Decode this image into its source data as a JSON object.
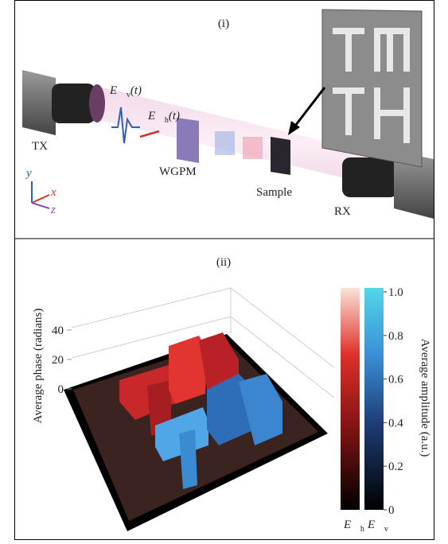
{
  "panel_i": {
    "label": "(i)",
    "field_v": {
      "symbol": "E⃗",
      "sub": "v",
      "arg": "(t)"
    },
    "field_h": {
      "symbol": "E⃗",
      "sub": "h",
      "arg": "(t)"
    },
    "tx": "TX",
    "rx": "RX",
    "wgpm": "WGPM",
    "sample": "Sample",
    "axes": {
      "x": "x",
      "y": "y",
      "z": "z"
    }
  },
  "panel_ii": {
    "label": "(ii)",
    "phase_axis": {
      "title": "Average phase (radians)",
      "ticks": [
        0,
        20,
        40
      ]
    },
    "colorbar": {
      "title": "Average amplitude (a.u.)",
      "ticks": [
        0,
        0.2,
        0.4,
        0.6,
        0.8,
        {
          "value": 1,
          "label": "1.0"
        }
      ],
      "label_h": {
        "symbol": "E⃗",
        "sub": "h"
      },
      "label_v": {
        "symbol": "E⃗",
        "sub": "v"
      }
    }
  }
}
